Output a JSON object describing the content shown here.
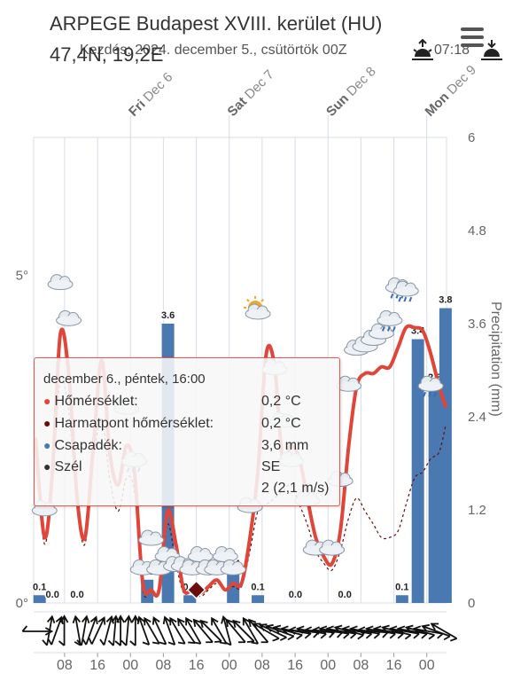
{
  "header": {
    "title": "ARPEGE Budapest XVIII. kerület (HU)",
    "coords": "47,4N, 19,2E",
    "subtitle": "Kezdés: 2024. december 5., csütörtök 00Z",
    "sunrise_time": "07:18"
  },
  "tooltip": {
    "heading": "december 6., péntek, 16:00",
    "rows": [
      {
        "label": "Hőmérséklet:",
        "value": "0,2 °C",
        "color": "#e0453a"
      },
      {
        "label": "Harmatpont hőmérséklet:",
        "value": "0,2 °C",
        "color": "#6b0d0d"
      },
      {
        "label": "Csapadék:",
        "value": "3,6 mm",
        "color": "#4a78b0"
      },
      {
        "label": "Szél",
        "value": "SE",
        "color": "#333333"
      }
    ],
    "wind_extra": "2 (2,1 m/s)"
  },
  "colors": {
    "temperature": "#e0453a",
    "dewpoint": "#6b0d0d",
    "precipitation": "#4a78b0",
    "grid": "#d7dce6",
    "background": "#ffffff"
  },
  "chart_data": {
    "type": "line",
    "days": [
      {
        "name": "Fri",
        "date": "Dec 6",
        "x": 6
      },
      {
        "name": "Sat",
        "date": "Dec 7",
        "x": 7
      },
      {
        "name": "Sun",
        "date": "Dec 8",
        "x": 8
      },
      {
        "name": "Mon",
        "date": "Dec 9",
        "x": 9
      }
    ],
    "x_ticks": [
      {
        "x": 5.333,
        "label": "08"
      },
      {
        "x": 5.667,
        "label": "16"
      },
      {
        "x": 6,
        "label": "00"
      },
      {
        "x": 6.333,
        "label": "08"
      },
      {
        "x": 6.667,
        "label": "16"
      },
      {
        "x": 7,
        "label": "00"
      },
      {
        "x": 7.333,
        "label": "08"
      },
      {
        "x": 7.667,
        "label": "16"
      },
      {
        "x": 8,
        "label": "00"
      },
      {
        "x": 8.333,
        "label": "08"
      },
      {
        "x": 8.667,
        "label": "16"
      },
      {
        "x": 9,
        "label": "00"
      }
    ],
    "xlim": [
      5.02,
      9.2
    ],
    "y_left": {
      "ticks": [
        "0°",
        "5°"
      ],
      "values": [
        0,
        5
      ],
      "ylim": [
        0,
        7.1
      ]
    },
    "y_right": {
      "label": "Precipitation (mm)",
      "ticks": [
        "0",
        "1.2",
        "2.4",
        "3.6",
        "4.8",
        "6"
      ],
      "values": [
        0,
        1.2,
        2.4,
        3.6,
        4.8,
        6
      ],
      "ylim": [
        0,
        6
      ]
    },
    "grid": true,
    "series": [
      {
        "name": "Hőmérséklet",
        "x": [
          5.04,
          5.13,
          5.21,
          5.29,
          5.375,
          5.46,
          5.54,
          5.625,
          5.71,
          5.79,
          5.875,
          5.96,
          6.04,
          6.125,
          6.21,
          6.29,
          6.375,
          6.46,
          6.54,
          6.625,
          6.71,
          6.79,
          6.875,
          6.96,
          7.04,
          7.125,
          7.21,
          7.29,
          7.375,
          7.46,
          7.54,
          7.625,
          7.71,
          7.79,
          7.875,
          7.96,
          8.04,
          8.125,
          8.21,
          8.29,
          8.375,
          8.46,
          8.54,
          8.625,
          8.71,
          8.79,
          8.875,
          8.96,
          9.04,
          9.125,
          9.19
        ],
        "values": [
          2.5,
          1.0,
          2.0,
          4.1,
          3.5,
          1.6,
          1.0,
          2.4,
          3.7,
          2.3,
          1.8,
          2.4,
          2.0,
          0.3,
          0.2,
          0.2,
          1.4,
          0.9,
          0.2,
          0.2,
          0.15,
          0.25,
          0.35,
          0.2,
          0.3,
          0.3,
          1.0,
          2.0,
          3.8,
          3.6,
          2.2,
          2.4,
          2.2,
          1.6,
          1.0,
          0.7,
          0.6,
          1.1,
          2.4,
          3.3,
          3.5,
          3.5,
          3.6,
          3.6,
          3.9,
          4.2,
          4.2,
          4.15,
          3.8,
          3.3,
          3.0
        ]
      },
      {
        "name": "Harmatpont hőmérséklet",
        "x": [
          5.04,
          5.13,
          5.21,
          5.29,
          5.375,
          5.46,
          5.54,
          5.625,
          5.71,
          5.79,
          5.875,
          5.96,
          6.04,
          6.125,
          6.21,
          6.29,
          6.375,
          6.46,
          6.54,
          6.625,
          6.71,
          6.79,
          6.875,
          6.96,
          7.04,
          7.125,
          7.21,
          7.29,
          7.375,
          7.46,
          7.54,
          7.625,
          7.71,
          7.79,
          7.875,
          7.96,
          8.04,
          8.125,
          8.21,
          8.29,
          8.375,
          8.46,
          8.54,
          8.625,
          8.71,
          8.79,
          8.875,
          8.96,
          9.04,
          9.125,
          9.19
        ],
        "values": [
          2.3,
          0.9,
          1.9,
          3.4,
          2.9,
          1.5,
          0.9,
          2.2,
          2.8,
          1.9,
          1.4,
          1.9,
          1.7,
          0.2,
          0.2,
          0.2,
          1.2,
          0.6,
          0.15,
          0.2,
          0.1,
          0.2,
          0.3,
          0.2,
          0.25,
          0.25,
          0.8,
          1.4,
          1.5,
          1.6,
          1.7,
          1.8,
          1.5,
          1.2,
          0.8,
          0.6,
          0.5,
          0.8,
          1.3,
          1.6,
          1.4,
          1.2,
          1.0,
          1.0,
          1.1,
          1.5,
          1.9,
          2.0,
          2.2,
          2.3,
          2.7
        ]
      }
    ],
    "precipitation_bars": [
      {
        "x": 5.08,
        "value": 0.1,
        "label": "0.1"
      },
      {
        "x": 5.21,
        "value": 0.0,
        "label": "0.0"
      },
      {
        "x": 5.46,
        "value": 0.0,
        "label": "0.0"
      },
      {
        "x": 6.17,
        "value": 0.3,
        "label": "0.3"
      },
      {
        "x": 6.38,
        "value": 3.6,
        "label": "3.6"
      },
      {
        "x": 6.6,
        "value": 0.1,
        "label": "0.1"
      },
      {
        "x": 7.04,
        "value": 0.4,
        "label": "0.4"
      },
      {
        "x": 7.29,
        "value": 0.1,
        "label": "0.1"
      },
      {
        "x": 7.67,
        "value": 0.0,
        "label": "0.0"
      },
      {
        "x": 8.17,
        "value": 0.0,
        "label": "0.0"
      },
      {
        "x": 8.75,
        "value": 0.1,
        "label": "0.1"
      },
      {
        "x": 8.91,
        "value": 3.4,
        "label": "3.4"
      },
      {
        "x": 9.08,
        "value": 2.8,
        "label": "2.8"
      },
      {
        "x": 9.19,
        "value": 3.8,
        "label": "3.8"
      }
    ],
    "highlighted_point": {
      "x": 6.667,
      "value": 0.2
    },
    "wind_arrows": [
      {
        "x": 5.05,
        "dir": 270
      },
      {
        "x": 5.18,
        "dir": 190
      },
      {
        "x": 5.25,
        "dir": 200
      },
      {
        "x": 5.33,
        "dir": 180
      },
      {
        "x": 5.47,
        "dir": 170
      },
      {
        "x": 5.53,
        "dir": 190
      },
      {
        "x": 5.6,
        "dir": 200
      },
      {
        "x": 5.67,
        "dir": 205
      },
      {
        "x": 5.77,
        "dir": 195
      },
      {
        "x": 5.84,
        "dir": 185
      },
      {
        "x": 5.9,
        "dir": 180
      },
      {
        "x": 5.97,
        "dir": 185
      },
      {
        "x": 6.05,
        "dir": 180
      },
      {
        "x": 6.14,
        "dir": 160
      },
      {
        "x": 6.22,
        "dir": 150
      },
      {
        "x": 6.3,
        "dir": 155
      },
      {
        "x": 6.4,
        "dir": 160
      },
      {
        "x": 6.48,
        "dir": 150
      },
      {
        "x": 6.57,
        "dir": 145
      },
      {
        "x": 6.64,
        "dir": 150
      },
      {
        "x": 6.74,
        "dir": 140
      },
      {
        "x": 6.82,
        "dir": 135
      },
      {
        "x": 6.9,
        "dir": 150
      },
      {
        "x": 6.98,
        "dir": 165
      },
      {
        "x": 7.07,
        "dir": 140
      },
      {
        "x": 7.15,
        "dir": 135
      },
      {
        "x": 7.22,
        "dir": 150
      },
      {
        "x": 7.3,
        "dir": 140
      },
      {
        "x": 7.38,
        "dir": 120
      },
      {
        "x": 7.45,
        "dir": 115
      },
      {
        "x": 7.52,
        "dir": 110
      },
      {
        "x": 7.6,
        "dir": 105
      },
      {
        "x": 7.68,
        "dir": 100
      },
      {
        "x": 7.76,
        "dir": 95
      },
      {
        "x": 7.84,
        "dir": 100
      },
      {
        "x": 7.92,
        "dir": 95
      },
      {
        "x": 8.0,
        "dir": 95
      },
      {
        "x": 8.07,
        "dir": 100
      },
      {
        "x": 8.14,
        "dir": 100
      },
      {
        "x": 8.22,
        "dir": 105
      },
      {
        "x": 8.3,
        "dir": 100
      },
      {
        "x": 8.38,
        "dir": 100
      },
      {
        "x": 8.46,
        "dir": 95
      },
      {
        "x": 8.54,
        "dir": 100
      },
      {
        "x": 8.62,
        "dir": 100
      },
      {
        "x": 8.7,
        "dir": 105
      },
      {
        "x": 8.78,
        "dir": 100
      },
      {
        "x": 8.86,
        "dir": 100
      },
      {
        "x": 8.94,
        "dir": 105
      },
      {
        "x": 9.02,
        "dir": 100
      },
      {
        "x": 9.1,
        "dir": 110
      },
      {
        "x": 9.18,
        "dir": 120
      }
    ],
    "weather_icons": [
      {
        "x": 5.13,
        "value": 1.45,
        "kind": "cloud"
      },
      {
        "x": 5.29,
        "value": 4.9,
        "kind": "cloud"
      },
      {
        "x": 5.375,
        "value": 4.35,
        "kind": "cloud"
      },
      {
        "x": 5.96,
        "value": 3.0,
        "kind": "cloud"
      },
      {
        "x": 6.04,
        "value": 2.2,
        "kind": "cloud-rain"
      },
      {
        "x": 6.125,
        "value": 0.55,
        "kind": "cloud"
      },
      {
        "x": 6.21,
        "value": 1.0,
        "kind": "cloud"
      },
      {
        "x": 6.29,
        "value": 0.55,
        "kind": "cloud"
      },
      {
        "x": 6.375,
        "value": 0.75,
        "kind": "cloud"
      },
      {
        "x": 6.46,
        "value": 0.6,
        "kind": "cloud"
      },
      {
        "x": 6.54,
        "value": 0.6,
        "kind": "cloud"
      },
      {
        "x": 6.625,
        "value": 0.55,
        "kind": "cloud"
      },
      {
        "x": 6.71,
        "value": 0.75,
        "kind": "cloud"
      },
      {
        "x": 6.79,
        "value": 0.55,
        "kind": "cloud"
      },
      {
        "x": 6.875,
        "value": 0.55,
        "kind": "cloud"
      },
      {
        "x": 6.96,
        "value": 0.75,
        "kind": "cloud"
      },
      {
        "x": 7.04,
        "value": 0.55,
        "kind": "cloud"
      },
      {
        "x": 7.21,
        "value": 1.5,
        "kind": "cloud"
      },
      {
        "x": 7.29,
        "value": 4.45,
        "kind": "sun-cloud"
      },
      {
        "x": 7.46,
        "value": 3.6,
        "kind": "cloud"
      },
      {
        "x": 7.54,
        "value": 2.8,
        "kind": "cloud"
      },
      {
        "x": 7.625,
        "value": 2.2,
        "kind": "cloud"
      },
      {
        "x": 7.79,
        "value": 1.6,
        "kind": "cloud"
      },
      {
        "x": 7.875,
        "value": 0.85,
        "kind": "cloud"
      },
      {
        "x": 8.04,
        "value": 0.85,
        "kind": "cloud"
      },
      {
        "x": 8.125,
        "value": 1.9,
        "kind": "cloud"
      },
      {
        "x": 8.21,
        "value": 3.35,
        "kind": "cloud"
      },
      {
        "x": 8.29,
        "value": 3.9,
        "kind": "cloud"
      },
      {
        "x": 8.375,
        "value": 3.95,
        "kind": "cloud"
      },
      {
        "x": 8.46,
        "value": 4.05,
        "kind": "cloud"
      },
      {
        "x": 8.54,
        "value": 4.15,
        "kind": "cloud"
      },
      {
        "x": 8.625,
        "value": 4.35,
        "kind": "cloud-rain"
      },
      {
        "x": 8.71,
        "value": 4.85,
        "kind": "cloud-rain"
      },
      {
        "x": 8.79,
        "value": 4.8,
        "kind": "cloud-rain"
      },
      {
        "x": 9.04,
        "value": 3.35,
        "kind": "cloud-rain"
      }
    ]
  }
}
